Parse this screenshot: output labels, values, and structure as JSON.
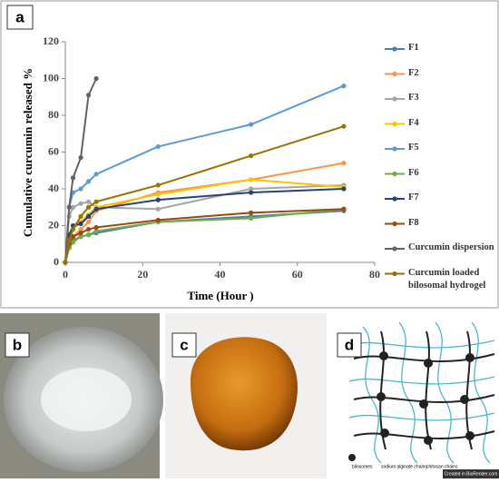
{
  "chart_data": {
    "type": "line",
    "panel_label": "a",
    "xlabel": "Time (Hour )",
    "ylabel": "Cumulative curcumin released %",
    "x": [
      0,
      1,
      2,
      4,
      6,
      8,
      24,
      48,
      72
    ],
    "xlim": [
      0,
      80
    ],
    "xticks": [
      0,
      20,
      40,
      60,
      80
    ],
    "ylim": [
      0,
      120
    ],
    "yticks": [
      0,
      20,
      40,
      60,
      80,
      100,
      120
    ],
    "series": [
      {
        "name": "F1",
        "color": "#4a7ebb",
        "values": [
          0,
          8,
          12,
          14,
          15,
          16,
          22,
          25,
          28
        ]
      },
      {
        "name": "F2",
        "color": "#f79646",
        "values": [
          0,
          10,
          14,
          18,
          22,
          28,
          38,
          45,
          54
        ]
      },
      {
        "name": "F3",
        "color": "#a5a5a5",
        "values": [
          0,
          25,
          30,
          32,
          33,
          30,
          29,
          40,
          42
        ]
      },
      {
        "name": "F4",
        "color": "#ffc000",
        "values": [
          0,
          12,
          18,
          22,
          26,
          30,
          37,
          45,
          41
        ]
      },
      {
        "name": "F5",
        "color": "#5b9bd5",
        "values": [
          0,
          30,
          38,
          40,
          44,
          48,
          63,
          75,
          96
        ]
      },
      {
        "name": "F6",
        "color": "#70ad47",
        "values": [
          0,
          8,
          11,
          14,
          15,
          17,
          22,
          24,
          29
        ]
      },
      {
        "name": "F7",
        "color": "#264478",
        "values": [
          0,
          15,
          20,
          21,
          25,
          29,
          34,
          38,
          40
        ]
      },
      {
        "name": "F8",
        "color": "#9e480e",
        "values": [
          0,
          10,
          14,
          16,
          18,
          19,
          23,
          27,
          29
        ]
      },
      {
        "name": "Curcumin dispersion",
        "color": "#636363",
        "values": [
          0,
          30,
          46,
          57,
          91,
          100,
          null,
          null,
          null
        ]
      },
      {
        "name": "Curcumin loaded bilosomal hydrogel",
        "color": "#997300",
        "values": [
          0,
          12,
          18,
          25,
          30,
          33,
          42,
          58,
          74
        ]
      }
    ]
  },
  "panels": {
    "b": {
      "label": "b"
    },
    "c": {
      "label": "c"
    },
    "d": {
      "label": "d",
      "legend": [
        "bilosomes",
        "sodium alginate chains",
        "chitosan chains"
      ],
      "credit": "Created in BioRender.com"
    }
  }
}
